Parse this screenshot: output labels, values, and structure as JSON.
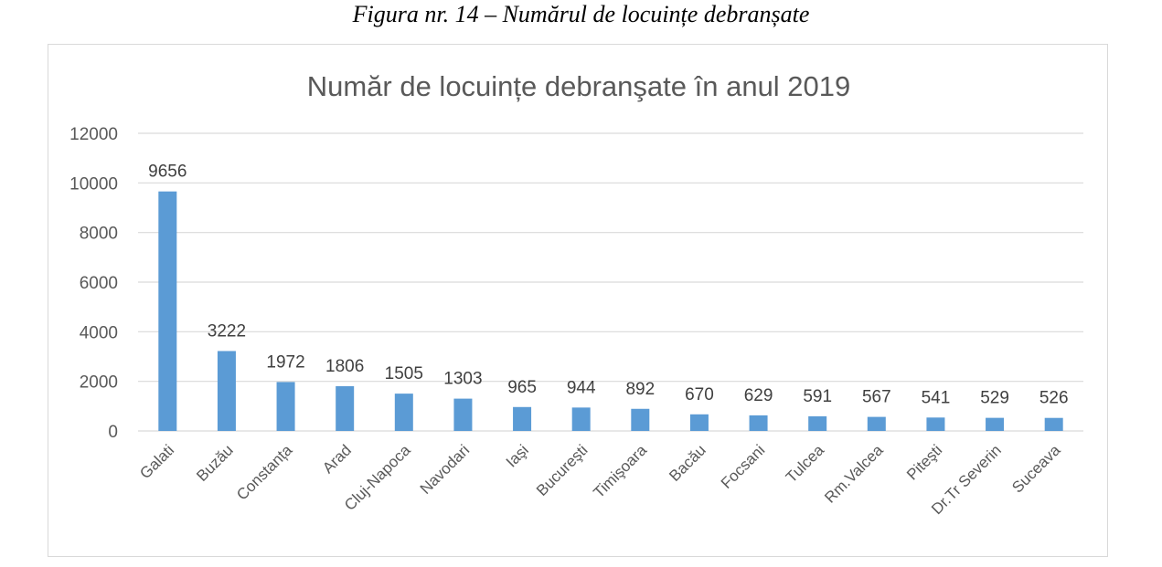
{
  "figure_caption": "Figura nr. 14 – Numărul de locuințe debranșate",
  "colors": {
    "bar": "#5b9bd5",
    "grid": "#d9d9d9",
    "text": "#595959"
  },
  "chart_data": {
    "type": "bar",
    "title": "Număr de locuințe debranşate în anul 2019",
    "xlabel": "",
    "ylabel": "",
    "ylim": [
      0,
      12000
    ],
    "yticks": [
      0,
      2000,
      4000,
      6000,
      8000,
      10000,
      12000
    ],
    "grid": true,
    "categories": [
      "Galati",
      "Buzău",
      "Constanța",
      "Arad",
      "Cluj-Napoca",
      "Navodari",
      "Iaşi",
      "Bucureşti",
      "Timişoara",
      "Bacău",
      "Focsani",
      "Tulcea",
      "Rm.Valcea",
      "Piteşti",
      "Dr.Tr Severin",
      "Suceava"
    ],
    "values": [
      9656,
      3222,
      1972,
      1806,
      1505,
      1303,
      965,
      944,
      892,
      670,
      629,
      591,
      567,
      541,
      529,
      526
    ]
  }
}
